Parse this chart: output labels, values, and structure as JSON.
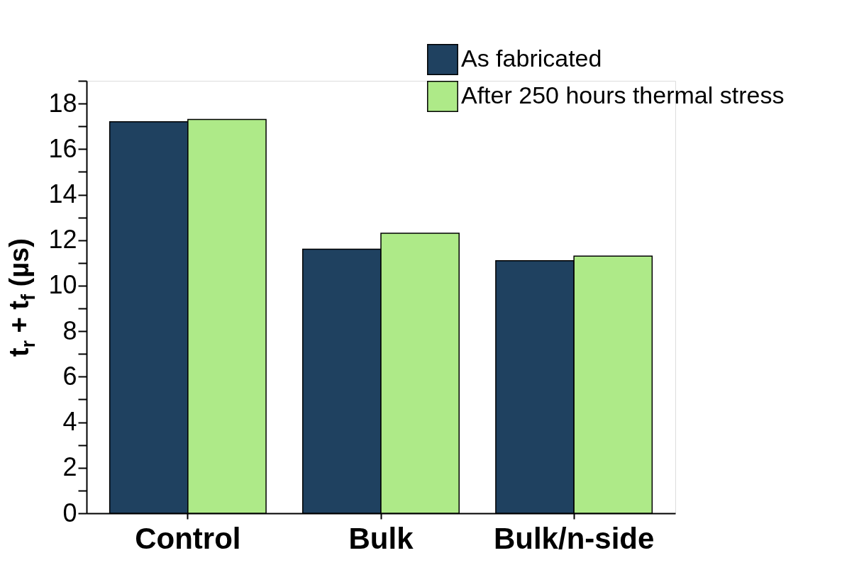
{
  "chart_data": {
    "type": "bar",
    "ylabel": "t$_{r}$ + t$_{f}$ (µs)",
    "categories": [
      "Control",
      "Bulk",
      "Bulk/n-side"
    ],
    "series": [
      {
        "name": "As fabricated",
        "color": "#1f4160",
        "values": [
          17.2,
          11.6,
          11.1
        ]
      },
      {
        "name": "After 250 hours thermal stress",
        "color": "#aeea88",
        "values": [
          17.3,
          12.3,
          11.3
        ]
      }
    ],
    "ylim": [
      0,
      19
    ],
    "yticks": [
      0,
      {
        "value": 1,
        "label": null
      },
      2,
      {
        "value": 3,
        "label": null
      },
      4,
      {
        "value": 5,
        "label": null
      },
      6,
      {
        "value": 7,
        "label": null
      },
      8,
      {
        "value": 9,
        "label": null
      },
      10,
      {
        "value": 11,
        "label": null
      },
      12,
      {
        "value": 13,
        "label": null
      },
      14,
      {
        "value": 15,
        "label": null
      },
      16,
      {
        "value": 17,
        "label": null
      },
      18,
      {
        "value": 19,
        "label": null
      }
    ],
    "grid": false,
    "legend": "top right"
  }
}
